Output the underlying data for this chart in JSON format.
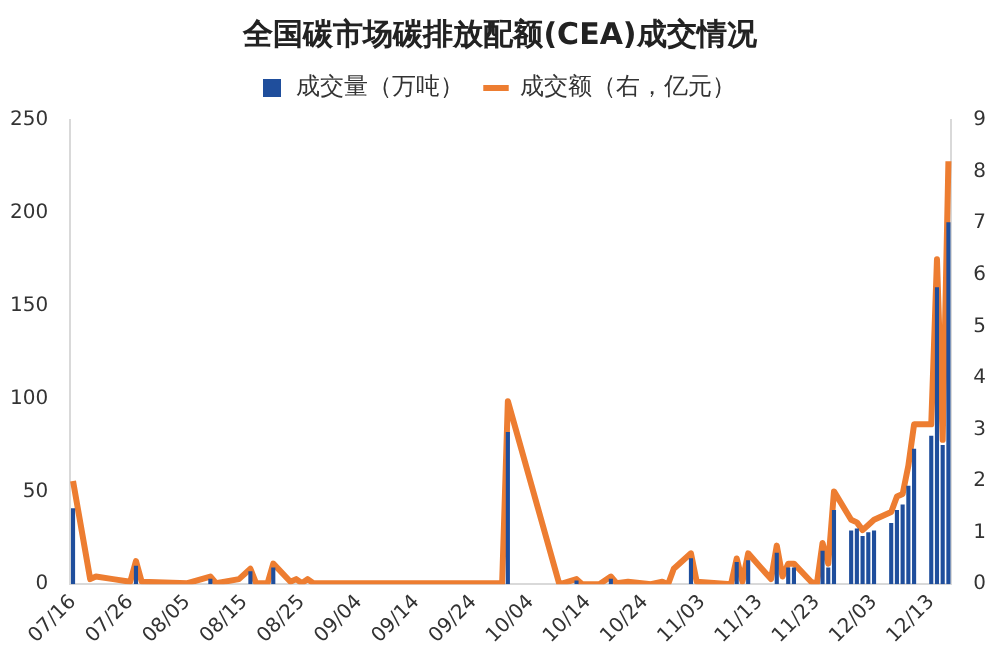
{
  "chart_data": {
    "type": "bar",
    "title": "全国碳市场碳排放配额(CEA)成交情况",
    "categories": [
      "07/16",
      null,
      null,
      null,
      null,
      null,
      null,
      null,
      null,
      null,
      "07/26",
      null,
      null,
      null,
      null,
      null,
      null,
      null,
      null,
      null,
      "08/05",
      null,
      null,
      null,
      null,
      null,
      null,
      null,
      null,
      null,
      "08/15",
      null,
      null,
      null,
      null,
      null,
      null,
      null,
      null,
      null,
      "08/25",
      null,
      null,
      null,
      null,
      null,
      null,
      null,
      null,
      null,
      "09/04",
      null,
      null,
      null,
      null,
      null,
      null,
      null,
      null,
      null,
      "09/14",
      null,
      null,
      null,
      null,
      null,
      null,
      null,
      null,
      null,
      "09/24",
      null,
      null,
      null,
      null,
      null,
      null,
      null,
      null,
      null,
      "10/04",
      null,
      null,
      null,
      null,
      null,
      null,
      null,
      null,
      null,
      "10/14",
      null,
      null,
      null,
      null,
      null,
      null,
      null,
      null,
      null,
      "10/24",
      null,
      null,
      null,
      null,
      null,
      null,
      null,
      null,
      null,
      "11/03",
      null,
      null,
      null,
      null,
      null,
      null,
      null,
      null,
      null,
      "11/13",
      null,
      null,
      null,
      null,
      null,
      null,
      null,
      null,
      null,
      "11/23",
      null,
      null,
      null,
      null,
      null,
      null,
      null,
      null,
      null,
      "12/03",
      null,
      null,
      null,
      null,
      null,
      null,
      null,
      null,
      null,
      "12/13",
      null,
      null,
      null
    ],
    "series": [
      {
        "name": "成交量（万吨）",
        "color": "#1f4e9c",
        "values": [
          41,
          null,
          null,
          null,
          null,
          null,
          null,
          null,
          null,
          null,
          null,
          10,
          null,
          null,
          null,
          null,
          null,
          null,
          null,
          null,
          null,
          null,
          null,
          null,
          3,
          null,
          null,
          null,
          null,
          null,
          null,
          7,
          null,
          null,
          null,
          9,
          null,
          null,
          null,
          null,
          null,
          null,
          null,
          null,
          null,
          null,
          null,
          null,
          null,
          null,
          null,
          null,
          null,
          null,
          null,
          null,
          null,
          null,
          null,
          null,
          null,
          null,
          null,
          null,
          null,
          null,
          null,
          null,
          null,
          null,
          null,
          null,
          null,
          null,
          null,
          null,
          82,
          null,
          null,
          null,
          null,
          null,
          null,
          null,
          null,
          null,
          null,
          null,
          2,
          null,
          null,
          null,
          null,
          null,
          3,
          null,
          null,
          null,
          null,
          null,
          null,
          null,
          null,
          null,
          null,
          null,
          null,
          null,
          14,
          null,
          null,
          null,
          null,
          null,
          null,
          null,
          12,
          null,
          13,
          null,
          null,
          null,
          null,
          17,
          null,
          9,
          9,
          null,
          null,
          null,
          null,
          18,
          9,
          40,
          null,
          null,
          29,
          30,
          26,
          28,
          29,
          null,
          null,
          33,
          40,
          43,
          53,
          73,
          null,
          null,
          80,
          160,
          75,
          195
        ]
      },
      {
        "name": "成交额（右，亿元）",
        "type": "line",
        "axis": "y2",
        "color": "#ed7d31",
        "values": [
          2.0,
          null,
          null,
          0.1,
          0.15,
          null,
          null,
          0.1,
          null,
          null,
          0.05,
          0.45,
          0.05,
          null,
          null,
          null,
          null,
          null,
          null,
          null,
          0.02,
          null,
          null,
          null,
          0.15,
          0.02,
          null,
          null,
          null,
          0.1,
          null,
          0.3,
          0.02,
          null,
          0.02,
          0.4,
          null,
          null,
          0.05,
          0.1,
          0.02,
          0.1,
          0.02,
          null,
          null,
          null,
          null,
          null,
          null,
          null,
          null,
          null,
          null,
          null,
          null,
          null,
          null,
          null,
          null,
          null,
          null,
          null,
          null,
          null,
          null,
          null,
          null,
          null,
          null,
          null,
          null,
          null,
          null,
          null,
          null,
          0.02,
          3.55,
          null,
          null,
          null,
          null,
          null,
          null,
          null,
          null,
          0,
          null,
          null,
          0.1,
          0,
          null,
          null,
          0,
          null,
          0.15,
          0.02,
          null,
          0.05,
          null,
          null,
          null,
          0,
          null,
          0.05,
          0,
          0.3,
          null,
          null,
          0.6,
          0.05,
          null,
          null,
          null,
          null,
          null,
          0,
          0.5,
          0.05,
          0.6,
          null,
          null,
          null,
          0.1,
          0.75,
          0.15,
          0.4,
          0.4,
          null,
          null,
          0.05,
          0,
          0.8,
          0.4,
          1.8,
          null,
          null,
          1.25,
          1.2,
          1.05,
          1.15,
          1.25,
          null,
          null,
          1.4,
          1.7,
          1.75,
          2.3,
          3.1,
          null,
          null,
          3.1,
          6.3,
          2.8,
          8.2
        ]
      }
    ],
    "ylim": [
      0,
      250
    ],
    "yticks": [
      0,
      50,
      100,
      150,
      200,
      250
    ],
    "y2lim": [
      0,
      9
    ],
    "y2ticks": [
      0,
      1,
      2,
      3,
      4,
      5,
      6,
      7,
      8,
      9
    ],
    "legend": "top",
    "marker": "none",
    "grid": false
  }
}
